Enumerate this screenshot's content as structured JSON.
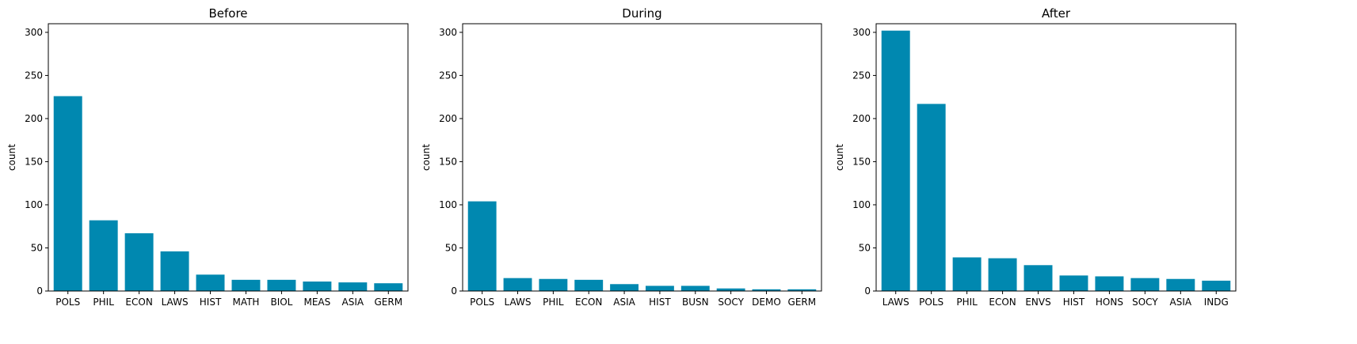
{
  "chart_data": [
    {
      "type": "bar",
      "title": "Before",
      "xlabel": "",
      "ylabel": "count",
      "ylim": [
        0,
        310
      ],
      "yticks": [
        0,
        50,
        100,
        150,
        200,
        250,
        300
      ],
      "color": "#0088b0",
      "categories": [
        "POLS",
        "PHIL",
        "ECON",
        "LAWS",
        "HIST",
        "MATH",
        "BIOL",
        "MEAS",
        "ASIA",
        "GERM"
      ],
      "values": [
        226,
        82,
        67,
        46,
        19,
        13,
        13,
        11,
        10,
        9
      ]
    },
    {
      "type": "bar",
      "title": "During",
      "xlabel": "",
      "ylabel": "count",
      "ylim": [
        0,
        310
      ],
      "yticks": [
        0,
        50,
        100,
        150,
        200,
        250,
        300
      ],
      "color": "#0088b0",
      "categories": [
        "POLS",
        "LAWS",
        "PHIL",
        "ECON",
        "ASIA",
        "HIST",
        "BUSN",
        "SOCY",
        "DEMO",
        "GERM"
      ],
      "values": [
        104,
        15,
        14,
        13,
        8,
        6,
        6,
        3,
        2,
        2
      ]
    },
    {
      "type": "bar",
      "title": "After",
      "xlabel": "",
      "ylabel": "count",
      "ylim": [
        0,
        310
      ],
      "yticks": [
        0,
        50,
        100,
        150,
        200,
        250,
        300
      ],
      "color": "#0088b0",
      "categories": [
        "LAWS",
        "POLS",
        "PHIL",
        "ECON",
        "ENVS",
        "HIST",
        "HONS",
        "SOCY",
        "ASIA",
        "INDG"
      ],
      "values": [
        302,
        217,
        39,
        38,
        30,
        18,
        17,
        15,
        14,
        12
      ]
    }
  ]
}
